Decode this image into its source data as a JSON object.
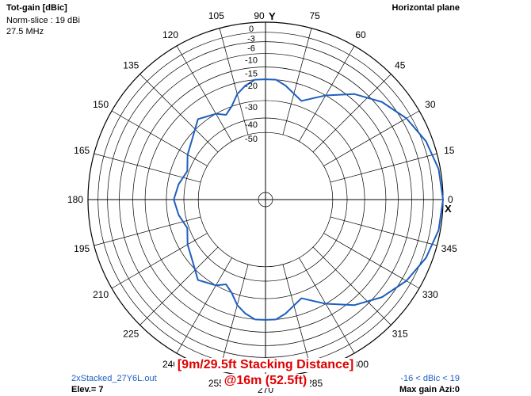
{
  "header": {
    "title": "Tot-gain [dBic]",
    "norm": "Norm-slice : 19 dBi",
    "freq": "27.5 MHz",
    "plane": "Horizontal plane"
  },
  "footer": {
    "file": "2xStacked_27Y6L.out",
    "elev": "Elev.= 7",
    "range": "-16 < dBic < 19",
    "maxgain": "Max gain Azi:0"
  },
  "caption": {
    "line1": "[9m/29.5ft Stacking Distance]",
    "line2": "@16m (52.5ft)"
  },
  "colors": {
    "pattern": "#1f5fbf",
    "grid": "#000000",
    "caption": "#e00000"
  },
  "chart_data": {
    "type": "polar",
    "title": "Tot-gain [dBic]",
    "ring_labels": [
      "0",
      "-3",
      "-6",
      "-10",
      "-15",
      "-20",
      "-30",
      "-40",
      "-50"
    ],
    "ring_values": [
      0,
      -3,
      -6,
      -10,
      -15,
      -20,
      -30,
      -40,
      -50
    ],
    "angle_labels": [
      "0",
      "15",
      "30",
      "45",
      "60",
      "75",
      "90",
      "105",
      "120",
      "135",
      "150",
      "165",
      "180",
      "195",
      "210",
      "225",
      "240",
      "255",
      "270",
      "285",
      "300",
      "315",
      "330",
      "345"
    ],
    "angles_deg": [
      0,
      15,
      30,
      45,
      60,
      75,
      90,
      105,
      120,
      135,
      150,
      165,
      180,
      195,
      210,
      225,
      240,
      255,
      270,
      285,
      300,
      315,
      330,
      345
    ],
    "axis_labels": {
      "x": "X",
      "y": "Y"
    },
    "series": [
      {
        "azimuth_deg": [
          0,
          10,
          20,
          30,
          40,
          50,
          60,
          70,
          80,
          85,
          90,
          95,
          100,
          105,
          110,
          115,
          120,
          130,
          140,
          150,
          160,
          170,
          180,
          190,
          200,
          210,
          220,
          230,
          240,
          245,
          250,
          255,
          260,
          265,
          270,
          275,
          280,
          290,
          300,
          310,
          320,
          330,
          340,
          350,
          360
        ],
        "gain_dB": [
          0,
          -0.5,
          -2,
          -4.5,
          -8,
          -13,
          -20,
          -27,
          -22,
          -20,
          -20,
          -20,
          -22,
          -25,
          -30,
          -33,
          -30,
          -27,
          -32,
          -35,
          -39,
          -36,
          -34,
          -36,
          -39,
          -35,
          -32,
          -27,
          -30,
          -33,
          -30,
          -25,
          -22,
          -20,
          -20,
          -20,
          -22,
          -27,
          -20,
          -13,
          -8,
          -4.5,
          -2,
          -0.5,
          0
        ]
      }
    ]
  }
}
